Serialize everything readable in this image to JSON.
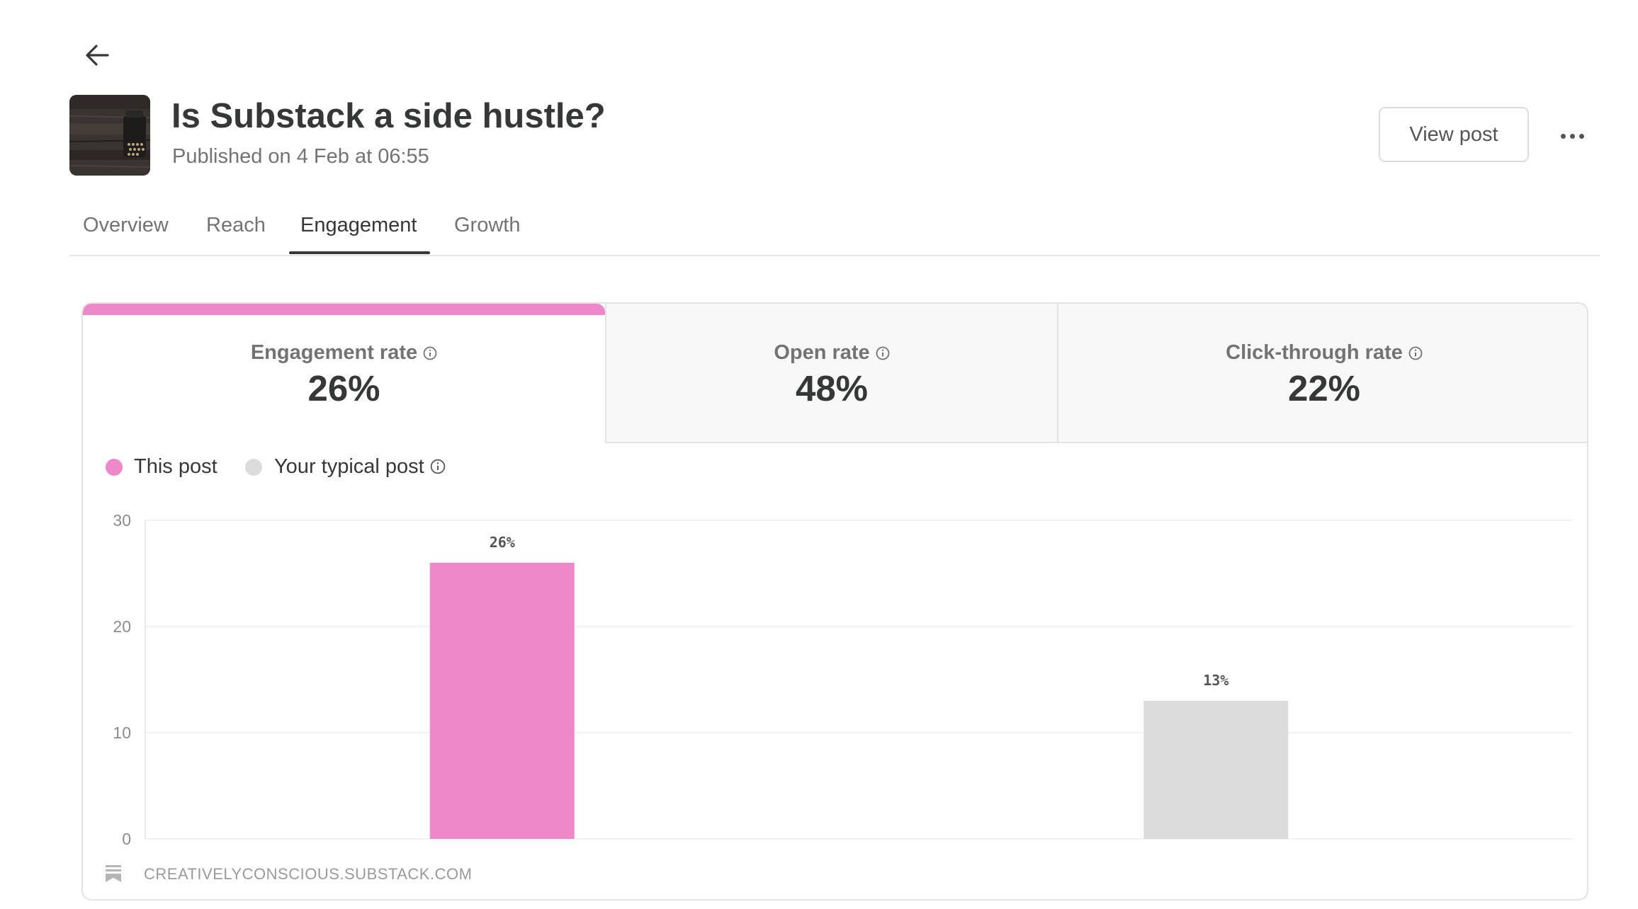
{
  "post": {
    "title": "Is Substack a side hustle?",
    "published": "Published on 4 Feb at 06:55",
    "view_post_label": "View post"
  },
  "tabs": [
    {
      "label": "Overview",
      "active": false
    },
    {
      "label": "Reach",
      "active": false
    },
    {
      "label": "Engagement",
      "active": true
    },
    {
      "label": "Growth",
      "active": false
    }
  ],
  "metrics": [
    {
      "label": "Engagement rate",
      "value": "26%",
      "active": true
    },
    {
      "label": "Open rate",
      "value": "48%",
      "active": false
    },
    {
      "label": "Click-through rate",
      "value": "22%",
      "active": false
    }
  ],
  "legend": [
    {
      "label": "This post",
      "color": "#ee88c8"
    },
    {
      "label": "Your typical post",
      "color": "#dcdcdc"
    }
  ],
  "colors": {
    "accent": "#ee88c8",
    "typical": "#dcdcdc"
  },
  "icons": [
    "back-arrow-icon",
    "more-dots-icon",
    "info-icon",
    "substack-bookmark-icon"
  ],
  "chart_data": {
    "type": "bar",
    "categories": [
      "This post",
      "Your typical post"
    ],
    "values": [
      26,
      13
    ],
    "value_labels": [
      "26%",
      "13%"
    ],
    "colors": [
      "#ee88c8",
      "#dcdcdc"
    ],
    "yticks": [
      0,
      10,
      20,
      30
    ],
    "ylim": [
      0,
      30
    ],
    "grid": true,
    "legend_position": "top-left"
  },
  "footer": {
    "source": "CREATIVELYCONSCIOUS.SUBSTACK.COM"
  }
}
